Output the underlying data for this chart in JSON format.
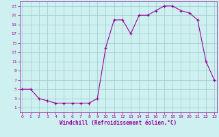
{
  "hours": [
    0,
    1,
    2,
    3,
    4,
    5,
    6,
    7,
    8,
    9,
    10,
    11,
    12,
    13,
    14,
    15,
    16,
    17,
    18,
    19,
    20,
    21,
    22,
    23
  ],
  "temps": [
    5,
    5,
    3,
    2.5,
    2,
    2,
    2,
    2,
    2,
    3,
    14,
    20,
    20,
    17,
    21,
    21,
    22,
    23,
    23,
    22,
    21.5,
    20,
    11,
    7
  ],
  "line_color": "#990099",
  "bg_color": "#cff0f0",
  "grid_color": "#99cccc",
  "xlabel": "Windchill (Refroidissement éolien,°C)",
  "yticks": [
    1,
    3,
    5,
    7,
    9,
    11,
    13,
    15,
    17,
    19,
    21,
    23
  ],
  "xticks": [
    0,
    1,
    2,
    3,
    4,
    5,
    6,
    7,
    8,
    9,
    10,
    11,
    12,
    13,
    14,
    15,
    16,
    17,
    18,
    19,
    20,
    21,
    22,
    23
  ],
  "ylim": [
    0,
    24
  ],
  "xlim": [
    -0.3,
    23.3
  ]
}
